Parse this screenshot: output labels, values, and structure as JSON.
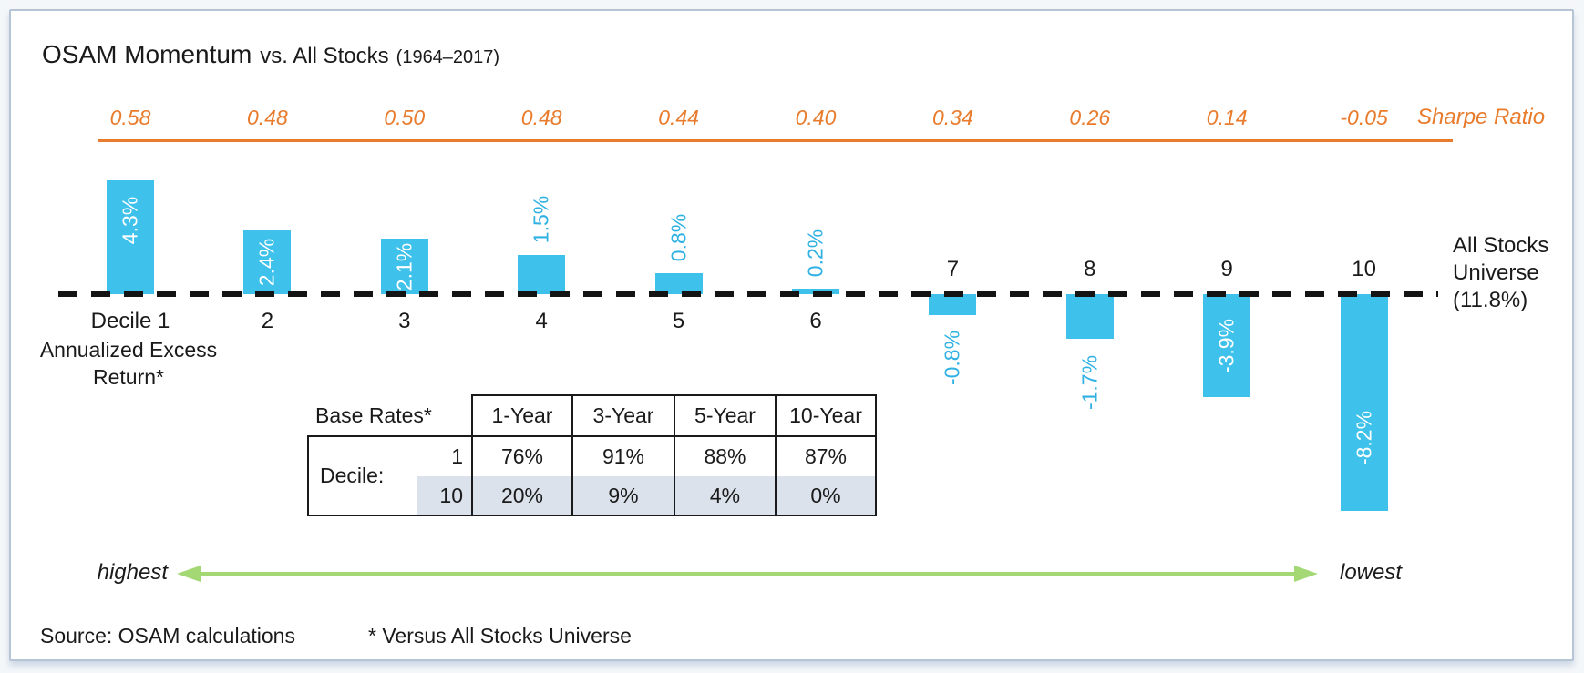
{
  "title": {
    "part1": "OSAM Momentum",
    "part2": "vs. All Stocks",
    "part3": "(1964–2017)"
  },
  "sharpe_axis_label": "Sharpe Ratio",
  "chart_data": {
    "type": "bar",
    "title": "OSAM Momentum vs. All Stocks (1964–2017)",
    "categories": [
      "Decile 1",
      "2",
      "3",
      "4",
      "5",
      "6",
      "7",
      "8",
      "9",
      "10"
    ],
    "series": [
      {
        "name": "Annualized Excess Return*",
        "unit": "%",
        "values": [
          4.3,
          2.4,
          2.1,
          1.5,
          0.8,
          0.2,
          -0.8,
          -1.7,
          -3.9,
          -8.2
        ]
      },
      {
        "name": "Sharpe Ratio",
        "values": [
          0.58,
          0.48,
          0.5,
          0.48,
          0.44,
          0.4,
          0.34,
          0.26,
          0.14,
          -0.05
        ]
      }
    ],
    "baseline": {
      "label_lines": [
        "All Stocks",
        "Universe",
        "(11.8%)"
      ],
      "value": "11.8%"
    },
    "axis_annotation": {
      "left": "highest",
      "right": "lowest"
    },
    "legend_position": "none",
    "grid": false
  },
  "left_axis_label": {
    "line1": "Annualized Excess",
    "line2": "Return*"
  },
  "table": {
    "corner_label": "Base Rates*",
    "col_headers": [
      "1-Year",
      "3-Year",
      "5-Year",
      "10-Year"
    ],
    "row_group_label": "Decile:",
    "rows": [
      {
        "decile": "1",
        "values": [
          "76%",
          "91%",
          "88%",
          "87%"
        ]
      },
      {
        "decile": "10",
        "values": [
          "20%",
          "9%",
          "4%",
          "0%"
        ]
      }
    ]
  },
  "footer": {
    "source": "Source: OSAM calculations",
    "footnote": "* Versus All Stocks Universe"
  },
  "colors": {
    "bar": "#3ec1ea",
    "value_label_outside": "#2fb1e2",
    "sharpe_orange": "#e87b2c",
    "arrow_green": "#a4d874",
    "table_shade": "#dbe2eb",
    "dash_black": "#141414"
  }
}
